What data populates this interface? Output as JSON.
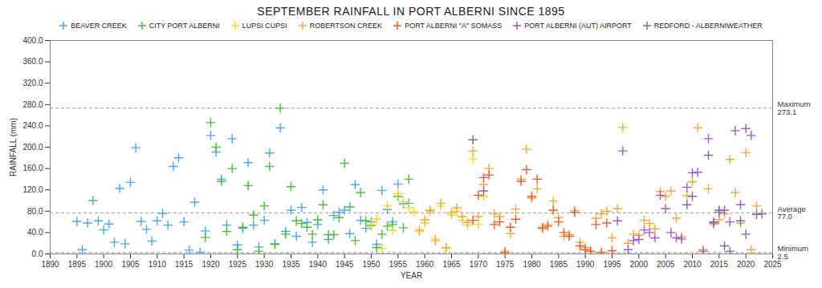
{
  "chart_data": {
    "type": "scatter",
    "title": "SEPTEMBER RAINFALL IN PORT ALBERNI SINCE 1895",
    "x_label": "YEAR",
    "y_label": "RAINFALL (mm)",
    "xlim": [
      1890,
      2025
    ],
    "xticks": [
      1890,
      1895,
      1900,
      1905,
      1910,
      1915,
      1920,
      1925,
      1930,
      1935,
      1940,
      1945,
      1950,
      1955,
      1960,
      1965,
      1970,
      1975,
      1980,
      1985,
      1990,
      1995,
      2000,
      2005,
      2010,
      2015,
      2020,
      2025
    ],
    "ylim": [
      0,
      400
    ],
    "yticks": [
      {
        "value": 0,
        "label": "0.0"
      },
      {
        "value": 40,
        "label": "40.0"
      },
      {
        "value": 80,
        "label": "80.0"
      },
      {
        "value": 120,
        "label": "120.0"
      },
      {
        "value": 160,
        "label": "160.0"
      },
      {
        "value": 200,
        "label": "200.0"
      },
      {
        "value": 240,
        "label": "240.0"
      },
      {
        "value": 280,
        "label": "280.0"
      },
      {
        "value": 320,
        "label": "320.0"
      },
      {
        "value": 360,
        "label": "360.0"
      },
      {
        "value": 400,
        "label": "400.0"
      }
    ],
    "grid": false,
    "legend": "top",
    "marker": "plus",
    "reference_lines": [
      {
        "text": "Maximum",
        "value": 273.1,
        "label": "273.1"
      },
      {
        "text": "Average",
        "value": 77,
        "label": "77.0"
      },
      {
        "text": "Minimum",
        "value": 2.5,
        "label": "2.5"
      }
    ],
    "series": [
      {
        "name": "BEAVER CREEK",
        "color": "#4da6f0",
        "x": [
          1895,
          1896,
          1897,
          1898,
          1899,
          1900,
          1901,
          1902,
          1903,
          1904,
          1905,
          1906,
          1907,
          1908,
          1909,
          1910,
          1911,
          1912,
          1913,
          1914,
          1915,
          1916,
          1917,
          1918,
          1919,
          1920,
          1921,
          1922,
          1923,
          1924,
          1925,
          1926,
          1927,
          1928,
          1929,
          1930,
          1931,
          1932,
          1933,
          1934,
          1935,
          1936,
          1937,
          1938,
          1939,
          1940,
          1941,
          1942,
          1943,
          1944,
          1945,
          1946,
          1947,
          1948,
          1949,
          1950,
          1951,
          1952,
          1953,
          1954,
          1955,
          1956,
          1957
        ],
        "values": [
          61,
          8,
          58,
          100,
          62,
          45,
          56,
          22,
          123,
          19,
          134,
          199,
          61,
          46,
          24,
          62,
          76,
          54,
          164,
          180,
          60,
          7,
          97,
          3,
          43,
          222,
          191,
          140,
          54,
          216,
          17,
          48,
          171,
          54,
          13,
          63,
          189,
          19,
          236,
          42,
          82,
          33,
          87,
          59,
          22,
          55,
          120,
          27,
          72,
          78,
          82,
          38,
          130,
          63,
          48,
          60,
          18,
          119,
          83,
          60,
          131,
          94,
          95
        ]
      },
      {
        "name": "CITY PORT ALBERNI",
        "color": "#4cbb3c",
        "x": [
          1919,
          1920,
          1921,
          1922,
          1923,
          1924,
          1925,
          1926,
          1927,
          1928,
          1929,
          1930,
          1931,
          1932,
          1933,
          1934,
          1935,
          1936,
          1937,
          1938,
          1939,
          1940,
          1941,
          1942,
          1943,
          1944,
          1945,
          1946,
          1947,
          1948,
          1949,
          1950,
          1951,
          1952,
          1953,
          1954,
          1955,
          1956,
          1957
        ],
        "values": [
          31,
          246,
          200,
          136,
          42,
          160,
          8,
          50,
          128,
          73,
          5,
          90,
          164,
          18,
          273.1,
          37,
          126,
          62,
          57,
          50,
          37,
          64,
          92,
          36,
          36,
          68,
          170,
          88,
          25,
          115,
          62,
          53,
          12,
          37,
          52,
          55,
          108,
          49,
          140
        ]
      },
      {
        "name": "LUPSI CUPSI",
        "color": "#f5d81f",
        "x": [
          1950,
          1951,
          1952,
          1953,
          1954,
          1955,
          1956,
          1957,
          1958,
          1959,
          1960,
          1961,
          1962,
          1963,
          1964,
          1965,
          1966,
          1967,
          1968,
          1969,
          1970,
          1971
        ],
        "values": [
          55,
          65,
          10,
          90,
          44,
          113,
          98,
          87,
          79,
          42,
          58,
          80,
          28,
          90,
          10,
          73,
          80,
          63,
          54,
          178,
          55,
          108
        ]
      },
      {
        "name": "ROBERTSON CREEK",
        "color": "#f7a83a",
        "x": [
          1959,
          1960,
          1961,
          1962,
          1963,
          1964,
          1965,
          1966,
          1967,
          1968,
          1969,
          1970,
          1971,
          1972,
          1973,
          1974,
          1975,
          1976,
          1977,
          1978,
          1979,
          1980,
          1981,
          1982,
          1983,
          1984,
          1985,
          1986,
          1987,
          1988,
          1989,
          1990,
          1991,
          1992,
          1993,
          1994,
          1995,
          1996,
          1997,
          1998,
          1999,
          2000,
          2001,
          2002,
          2003,
          2004,
          2005,
          2006,
          2007,
          2008,
          2009,
          2010,
          2011,
          2012,
          2013,
          2014,
          2015,
          2016,
          2017,
          2018,
          2019,
          2020,
          2021,
          2022
        ],
        "values": [
          45,
          64,
          82,
          25,
          95,
          12,
          77,
          86,
          70,
          59,
          193,
          70,
          130,
          160,
          75,
          70,
          5,
          38,
          84,
          140,
          196,
          105,
          122,
          50,
          55,
          99,
          68,
          33,
          36,
          81,
          22,
          12,
          4,
          67,
          75,
          80,
          30,
          85,
          237,
          20,
          37,
          35,
          63,
          57,
          47,
          117,
          108,
          118,
          67,
          32,
          109,
          135,
          236,
          8,
          122,
          55,
          64,
          75,
          177,
          115,
          58,
          190,
          8,
          90
        ]
      },
      {
        "name": "PORT ALBERNI \"A\" SOMASS",
        "color": "#ee5a2b",
        "x": [
          1969,
          1970,
          1971,
          1972,
          1973,
          1974,
          1975,
          1976,
          1977,
          1978,
          1979,
          1980,
          1981,
          1982,
          1983,
          1984,
          1985,
          1986,
          1987,
          1988,
          1989,
          1990,
          1991,
          1992,
          1993,
          1994,
          1995
        ],
        "values": [
          63,
          110,
          143,
          148,
          55,
          60,
          2.5,
          50,
          65,
          136,
          158,
          108,
          140,
          48,
          52,
          82,
          60,
          40,
          33,
          78,
          15,
          8,
          5,
          55,
          3,
          58,
          6
        ]
      },
      {
        "name": "PORT ALBERNI (AUT) AIRPORT",
        "color": "#9b59d0",
        "x": [
          1996,
          1997,
          1998,
          1999,
          2000,
          2001,
          2002,
          2003,
          2004,
          2005,
          2006,
          2007,
          2008,
          2009,
          2010,
          2011,
          2012,
          2013,
          2014,
          2015,
          2016,
          2017,
          2018,
          2019,
          2020,
          2021
        ],
        "values": [
          62,
          193,
          8,
          25,
          27,
          45,
          40,
          30,
          110,
          85,
          40,
          30,
          28,
          125,
          152,
          153,
          5,
          216,
          58,
          78,
          82,
          60,
          231,
          92,
          235,
          222
        ]
      },
      {
        "name": "REDFORD - ALBERNIWEATHER",
        "color": "#7e6a9e",
        "x": [
          1969,
          1971,
          2009,
          2010,
          2013,
          2014,
          2015,
          2016,
          2017,
          2019,
          2020,
          2022,
          2023
        ],
        "values": [
          214,
          118,
          92,
          108,
          185,
          60,
          82,
          15,
          5,
          62,
          37,
          74,
          75
        ]
      }
    ]
  }
}
